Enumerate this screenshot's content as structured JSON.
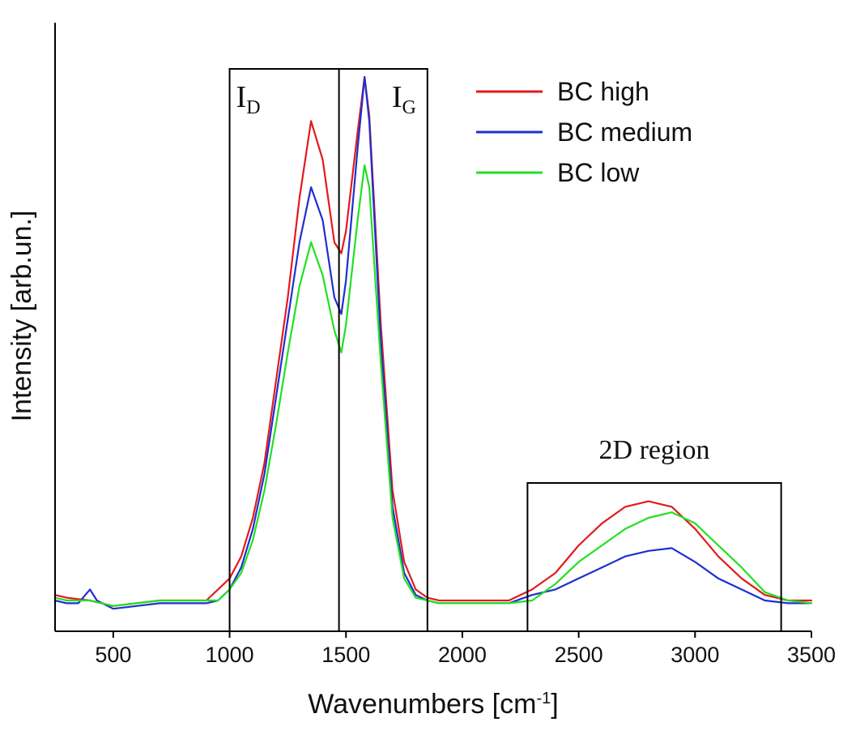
{
  "chart_data": {
    "type": "line",
    "title": "",
    "xlabel": "Wavenumbers [cm",
    "xlabel_sup": "-1",
    "xlabel_close": "]",
    "ylabel": "Intensity [arb.un.]",
    "xlim": [
      250,
      3500
    ],
    "ylim": [
      0,
      1
    ],
    "x_ticks": [
      500,
      1000,
      1500,
      2000,
      2500,
      3000,
      3500
    ],
    "grid": false,
    "legend_position": "top-right",
    "series": [
      {
        "name": "BC high",
        "color": "#e31a1c",
        "points": [
          [
            250,
            0.06
          ],
          [
            300,
            0.055
          ],
          [
            400,
            0.05
          ],
          [
            450,
            0.045
          ],
          [
            500,
            0.04
          ],
          [
            600,
            0.045
          ],
          [
            700,
            0.05
          ],
          [
            800,
            0.05
          ],
          [
            900,
            0.05
          ],
          [
            950,
            0.07
          ],
          [
            1000,
            0.09
          ],
          [
            1050,
            0.13
          ],
          [
            1100,
            0.2
          ],
          [
            1150,
            0.3
          ],
          [
            1200,
            0.45
          ],
          [
            1250,
            0.6
          ],
          [
            1300,
            0.78
          ],
          [
            1350,
            0.92
          ],
          [
            1400,
            0.85
          ],
          [
            1450,
            0.7
          ],
          [
            1480,
            0.68
          ],
          [
            1500,
            0.72
          ],
          [
            1550,
            0.9
          ],
          [
            1580,
            1.0
          ],
          [
            1600,
            0.93
          ],
          [
            1650,
            0.55
          ],
          [
            1700,
            0.25
          ],
          [
            1750,
            0.12
          ],
          [
            1800,
            0.07
          ],
          [
            1850,
            0.055
          ],
          [
            1900,
            0.05
          ],
          [
            2000,
            0.05
          ],
          [
            2100,
            0.05
          ],
          [
            2200,
            0.05
          ],
          [
            2300,
            0.07
          ],
          [
            2400,
            0.1
          ],
          [
            2500,
            0.15
          ],
          [
            2600,
            0.19
          ],
          [
            2700,
            0.22
          ],
          [
            2800,
            0.23
          ],
          [
            2900,
            0.22
          ],
          [
            3000,
            0.18
          ],
          [
            3100,
            0.13
          ],
          [
            3200,
            0.09
          ],
          [
            3300,
            0.06
          ],
          [
            3400,
            0.05
          ],
          [
            3500,
            0.05
          ]
        ]
      },
      {
        "name": "BC medium",
        "color": "#1f2fd0",
        "points": [
          [
            250,
            0.05
          ],
          [
            300,
            0.045
          ],
          [
            350,
            0.045
          ],
          [
            400,
            0.07
          ],
          [
            430,
            0.05
          ],
          [
            500,
            0.035
          ],
          [
            600,
            0.04
          ],
          [
            700,
            0.045
          ],
          [
            800,
            0.045
          ],
          [
            900,
            0.045
          ],
          [
            950,
            0.05
          ],
          [
            1000,
            0.07
          ],
          [
            1050,
            0.11
          ],
          [
            1100,
            0.18
          ],
          [
            1150,
            0.28
          ],
          [
            1200,
            0.42
          ],
          [
            1250,
            0.56
          ],
          [
            1300,
            0.7
          ],
          [
            1350,
            0.8
          ],
          [
            1400,
            0.74
          ],
          [
            1450,
            0.6
          ],
          [
            1480,
            0.57
          ],
          [
            1500,
            0.63
          ],
          [
            1550,
            0.87
          ],
          [
            1580,
            1.0
          ],
          [
            1600,
            0.92
          ],
          [
            1650,
            0.52
          ],
          [
            1700,
            0.22
          ],
          [
            1750,
            0.1
          ],
          [
            1800,
            0.06
          ],
          [
            1850,
            0.05
          ],
          [
            1900,
            0.045
          ],
          [
            2000,
            0.045
          ],
          [
            2100,
            0.045
          ],
          [
            2200,
            0.045
          ],
          [
            2300,
            0.06
          ],
          [
            2400,
            0.07
          ],
          [
            2500,
            0.09
          ],
          [
            2600,
            0.11
          ],
          [
            2700,
            0.13
          ],
          [
            2800,
            0.14
          ],
          [
            2900,
            0.145
          ],
          [
            3000,
            0.12
          ],
          [
            3100,
            0.09
          ],
          [
            3200,
            0.07
          ],
          [
            3300,
            0.05
          ],
          [
            3400,
            0.045
          ],
          [
            3500,
            0.045
          ]
        ]
      },
      {
        "name": "BC low",
        "color": "#22e022",
        "points": [
          [
            250,
            0.055
          ],
          [
            300,
            0.05
          ],
          [
            400,
            0.05
          ],
          [
            500,
            0.04
          ],
          [
            600,
            0.045
          ],
          [
            700,
            0.05
          ],
          [
            800,
            0.05
          ],
          [
            900,
            0.05
          ],
          [
            950,
            0.05
          ],
          [
            1000,
            0.07
          ],
          [
            1050,
            0.1
          ],
          [
            1100,
            0.16
          ],
          [
            1150,
            0.25
          ],
          [
            1200,
            0.37
          ],
          [
            1250,
            0.5
          ],
          [
            1300,
            0.62
          ],
          [
            1350,
            0.7
          ],
          [
            1400,
            0.64
          ],
          [
            1450,
            0.54
          ],
          [
            1480,
            0.5
          ],
          [
            1500,
            0.55
          ],
          [
            1550,
            0.74
          ],
          [
            1580,
            0.84
          ],
          [
            1600,
            0.8
          ],
          [
            1650,
            0.48
          ],
          [
            1700,
            0.2
          ],
          [
            1750,
            0.09
          ],
          [
            1800,
            0.055
          ],
          [
            1850,
            0.05
          ],
          [
            1900,
            0.045
          ],
          [
            2000,
            0.045
          ],
          [
            2100,
            0.045
          ],
          [
            2200,
            0.045
          ],
          [
            2300,
            0.05
          ],
          [
            2400,
            0.08
          ],
          [
            2500,
            0.12
          ],
          [
            2600,
            0.15
          ],
          [
            2700,
            0.18
          ],
          [
            2800,
            0.2
          ],
          [
            2900,
            0.21
          ],
          [
            3000,
            0.19
          ],
          [
            3100,
            0.15
          ],
          [
            3200,
            0.11
          ],
          [
            3300,
            0.065
          ],
          [
            3400,
            0.05
          ],
          [
            3500,
            0.045
          ]
        ]
      }
    ],
    "regions": [
      {
        "label_main": "I",
        "label_sub": "D",
        "x_start": 1000,
        "x_end": 1470
      },
      {
        "label_main": "I",
        "label_sub": "G",
        "x_start": 1470,
        "x_end": 1850
      },
      {
        "label": "2D region",
        "x_start": 2280,
        "x_end": 3370
      }
    ]
  }
}
